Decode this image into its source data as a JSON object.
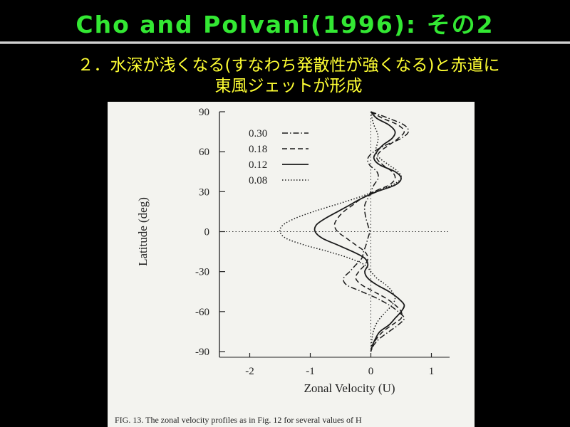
{
  "slide": {
    "title": "Cho  and  Polvani(1996):  その2",
    "subtitle_line1": "２．水深が浅くなる(すなわち発散性が強くなる)と赤道に",
    "subtitle_line2": "東風ジェットが形成",
    "title_color": "#33e833",
    "subtitle_color": "#ffff33"
  },
  "figure": {
    "caption": "FIG. 13.  The zonal velocity profiles as in Fig. 12 for several values of H"
  },
  "chart_data": {
    "type": "line",
    "xlabel": "Zonal Velocity (U)",
    "ylabel": "Latitude (deg)",
    "xlim": [
      -2.5,
      1.3
    ],
    "ylim": [
      -90,
      90
    ],
    "xticks": [
      -2,
      -1,
      0,
      1
    ],
    "xtick_labels": [
      "-2",
      "-1",
      "0",
      "1"
    ],
    "yticks": [
      90,
      60,
      30,
      0,
      -30,
      -60,
      -90
    ],
    "ytick_labels": [
      "90",
      "60",
      "30",
      "0",
      "-30",
      "-60",
      "-90"
    ],
    "legend_position": "top-left",
    "reference_lines": [
      {
        "orientation": "horizontal",
        "value": 0,
        "style": "dotted"
      },
      {
        "orientation": "vertical",
        "value": 0,
        "style": "dotted"
      }
    ],
    "series": [
      {
        "name": "0.30",
        "dash": "dashdot",
        "lat": [
          90,
          85,
          80,
          75,
          70,
          65,
          60,
          55,
          50,
          45,
          40,
          35,
          30,
          25,
          20,
          15,
          10,
          5,
          0,
          -5,
          -10,
          -15,
          -20,
          -25,
          -30,
          -35,
          -40,
          -45,
          -50,
          -55,
          -60,
          -65,
          -70,
          -75,
          -80,
          -85,
          -90
        ],
        "u": [
          0,
          0.3,
          0.55,
          0.62,
          0.5,
          0.25,
          0.05,
          -0.05,
          -0.02,
          0.1,
          0.12,
          0.05,
          0.0,
          -0.05,
          -0.1,
          -0.1,
          -0.08,
          -0.05,
          -0.02,
          -0.05,
          -0.08,
          -0.12,
          -0.15,
          -0.25,
          -0.35,
          -0.45,
          -0.4,
          -0.15,
          0.1,
          0.3,
          0.45,
          0.55,
          0.45,
          0.3,
          0.15,
          0.05,
          0
        ]
      },
      {
        "name": "0.18",
        "dash": "dashed",
        "lat": [
          90,
          85,
          80,
          75,
          70,
          65,
          60,
          55,
          50,
          45,
          40,
          35,
          30,
          25,
          20,
          15,
          10,
          5,
          0,
          -5,
          -10,
          -15,
          -20,
          -25,
          -30,
          -35,
          -40,
          -45,
          -50,
          -55,
          -60,
          -65,
          -70,
          -75,
          -80,
          -85,
          -90
        ],
        "u": [
          0,
          0.2,
          0.45,
          0.55,
          0.45,
          0.3,
          0.15,
          0.1,
          0.2,
          0.35,
          0.4,
          0.3,
          0.05,
          -0.15,
          -0.3,
          -0.45,
          -0.55,
          -0.6,
          -0.55,
          -0.4,
          -0.25,
          -0.1,
          -0.05,
          -0.1,
          -0.2,
          -0.25,
          -0.15,
          0.05,
          0.25,
          0.4,
          0.5,
          0.5,
          0.35,
          0.2,
          0.1,
          0.03,
          0
        ]
      },
      {
        "name": "0.12",
        "dash": "solid",
        "lat": [
          90,
          85,
          80,
          75,
          70,
          65,
          60,
          55,
          50,
          45,
          40,
          35,
          30,
          25,
          20,
          15,
          10,
          5,
          0,
          -5,
          -10,
          -15,
          -20,
          -25,
          -30,
          -35,
          -40,
          -45,
          -50,
          -55,
          -60,
          -65,
          -70,
          -75,
          -80,
          -85,
          -90
        ],
        "u": [
          0,
          0.1,
          0.3,
          0.4,
          0.35,
          0.2,
          0.1,
          0.05,
          0.15,
          0.4,
          0.5,
          0.4,
          0.1,
          -0.15,
          -0.35,
          -0.55,
          -0.75,
          -0.9,
          -0.92,
          -0.8,
          -0.55,
          -0.3,
          -0.1,
          -0.05,
          -0.1,
          -0.05,
          0.1,
          0.3,
          0.45,
          0.55,
          0.5,
          0.4,
          0.3,
          0.15,
          0.08,
          0.03,
          0
        ]
      },
      {
        "name": "0.08",
        "dash": "dotted",
        "lat": [
          90,
          85,
          80,
          75,
          70,
          65,
          60,
          55,
          50,
          45,
          40,
          35,
          30,
          25,
          20,
          15,
          10,
          5,
          0,
          -5,
          -10,
          -15,
          -20,
          -25,
          -30,
          -35,
          -40,
          -45,
          -50,
          -55,
          -60,
          -65,
          -70,
          -75,
          -80,
          -85,
          -90
        ],
        "u": [
          0,
          0.02,
          0.05,
          0.1,
          0.12,
          0.1,
          0.08,
          0.15,
          0.3,
          0.45,
          0.5,
          0.35,
          0.05,
          -0.25,
          -0.6,
          -0.95,
          -1.25,
          -1.45,
          -1.5,
          -1.4,
          -1.1,
          -0.7,
          -0.35,
          -0.1,
          0.0,
          0.1,
          0.25,
          0.35,
          0.4,
          0.35,
          0.25,
          0.15,
          0.08,
          0.04,
          0.02,
          0.01,
          0
        ]
      }
    ]
  }
}
